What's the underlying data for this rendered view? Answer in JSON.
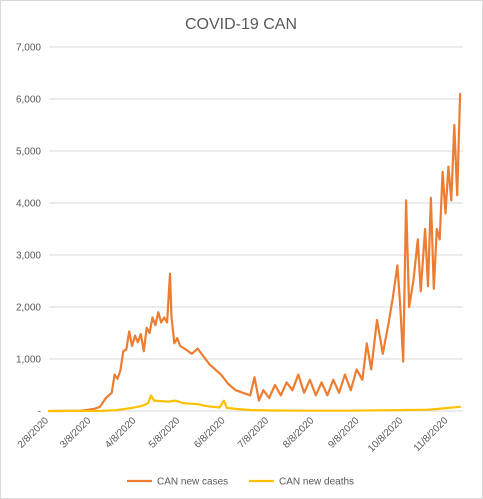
{
  "chart_data": {
    "type": "line",
    "title": "COVID-19 CAN",
    "xlabel": "",
    "ylabel": "",
    "x_range": [
      "2020-02-08",
      "2020-11-18"
    ],
    "ylim": [
      0,
      7000
    ],
    "y_ticks": [
      "-",
      "1,000",
      "2,000",
      "3,000",
      "4,000",
      "5,000",
      "6,000",
      "7,000"
    ],
    "y_tick_values": [
      0,
      1000,
      2000,
      3000,
      4000,
      5000,
      6000,
      7000
    ],
    "x_ticks": [
      "2/8/2020",
      "3/8/2020",
      "4/8/2020",
      "5/8/2020",
      "6/8/2020",
      "7/8/2020",
      "8/8/2020",
      "9/8/2020",
      "10/8/2020",
      "11/8/2020"
    ],
    "x_tick_dates": [
      "2020-02-08",
      "2020-03-08",
      "2020-04-08",
      "2020-05-08",
      "2020-06-08",
      "2020-07-08",
      "2020-08-08",
      "2020-09-08",
      "2020-10-08",
      "2020-11-08"
    ],
    "grid": "horizontal",
    "legend_position": "bottom",
    "series": [
      {
        "name": "CAN new cases",
        "color": "#ed7d31",
        "points": [
          [
            "2020-02-08",
            0
          ],
          [
            "2020-02-20",
            2
          ],
          [
            "2020-03-01",
            5
          ],
          [
            "2020-03-05",
            20
          ],
          [
            "2020-03-10",
            40
          ],
          [
            "2020-03-14",
            80
          ],
          [
            "2020-03-18",
            250
          ],
          [
            "2020-03-22",
            350
          ],
          [
            "2020-03-24",
            700
          ],
          [
            "2020-03-26",
            620
          ],
          [
            "2020-03-28",
            780
          ],
          [
            "2020-03-30",
            1150
          ],
          [
            "2020-04-01",
            1180
          ],
          [
            "2020-04-03",
            1530
          ],
          [
            "2020-04-05",
            1250
          ],
          [
            "2020-04-07",
            1450
          ],
          [
            "2020-04-09",
            1320
          ],
          [
            "2020-04-11",
            1480
          ],
          [
            "2020-04-13",
            1150
          ],
          [
            "2020-04-15",
            1600
          ],
          [
            "2020-04-17",
            1500
          ],
          [
            "2020-04-19",
            1800
          ],
          [
            "2020-04-21",
            1650
          ],
          [
            "2020-04-23",
            1900
          ],
          [
            "2020-04-25",
            1700
          ],
          [
            "2020-04-27",
            1800
          ],
          [
            "2020-04-29",
            1700
          ],
          [
            "2020-05-01",
            2640
          ],
          [
            "2020-05-02",
            1800
          ],
          [
            "2020-05-04",
            1300
          ],
          [
            "2020-05-06",
            1400
          ],
          [
            "2020-05-08",
            1250
          ],
          [
            "2020-05-12",
            1180
          ],
          [
            "2020-05-16",
            1100
          ],
          [
            "2020-05-20",
            1200
          ],
          [
            "2020-05-24",
            1050
          ],
          [
            "2020-05-28",
            900
          ],
          [
            "2020-06-01",
            800
          ],
          [
            "2020-06-05",
            700
          ],
          [
            "2020-06-10",
            520
          ],
          [
            "2020-06-15",
            400
          ],
          [
            "2020-06-20",
            350
          ],
          [
            "2020-06-25",
            300
          ],
          [
            "2020-06-28",
            650
          ],
          [
            "2020-07-01",
            200
          ],
          [
            "2020-07-04",
            400
          ],
          [
            "2020-07-08",
            250
          ],
          [
            "2020-07-12",
            500
          ],
          [
            "2020-07-16",
            300
          ],
          [
            "2020-07-20",
            550
          ],
          [
            "2020-07-24",
            400
          ],
          [
            "2020-07-28",
            700
          ],
          [
            "2020-08-01",
            350
          ],
          [
            "2020-08-05",
            600
          ],
          [
            "2020-08-09",
            300
          ],
          [
            "2020-08-13",
            550
          ],
          [
            "2020-08-17",
            300
          ],
          [
            "2020-08-21",
            600
          ],
          [
            "2020-08-25",
            350
          ],
          [
            "2020-08-29",
            700
          ],
          [
            "2020-09-02",
            400
          ],
          [
            "2020-09-06",
            800
          ],
          [
            "2020-09-10",
            600
          ],
          [
            "2020-09-13",
            1300
          ],
          [
            "2020-09-16",
            800
          ],
          [
            "2020-09-20",
            1750
          ],
          [
            "2020-09-24",
            1100
          ],
          [
            "2020-09-28",
            1700
          ],
          [
            "2020-10-01",
            2200
          ],
          [
            "2020-10-04",
            2800
          ],
          [
            "2020-10-06",
            2000
          ],
          [
            "2020-10-08",
            950
          ],
          [
            "2020-10-10",
            4050
          ],
          [
            "2020-10-12",
            2000
          ],
          [
            "2020-10-15",
            2500
          ],
          [
            "2020-10-18",
            3300
          ],
          [
            "2020-10-20",
            2300
          ],
          [
            "2020-10-23",
            3500
          ],
          [
            "2020-10-25",
            2400
          ],
          [
            "2020-10-27",
            4100
          ],
          [
            "2020-10-29",
            2350
          ],
          [
            "2020-10-31",
            3500
          ],
          [
            "2020-11-02",
            3300
          ],
          [
            "2020-11-04",
            4600
          ],
          [
            "2020-11-06",
            3800
          ],
          [
            "2020-11-08",
            4700
          ],
          [
            "2020-11-10",
            4050
          ],
          [
            "2020-11-12",
            5500
          ],
          [
            "2020-11-14",
            4150
          ],
          [
            "2020-11-16",
            6100
          ]
        ]
      },
      {
        "name": "CAN new deaths",
        "color": "#ffc000",
        "points": [
          [
            "2020-02-08",
            0
          ],
          [
            "2020-03-15",
            2
          ],
          [
            "2020-03-25",
            15
          ],
          [
            "2020-04-05",
            60
          ],
          [
            "2020-04-12",
            100
          ],
          [
            "2020-04-16",
            150
          ],
          [
            "2020-04-18",
            300
          ],
          [
            "2020-04-20",
            200
          ],
          [
            "2020-04-25",
            190
          ],
          [
            "2020-04-30",
            180
          ],
          [
            "2020-05-05",
            200
          ],
          [
            "2020-05-10",
            150
          ],
          [
            "2020-05-15",
            140
          ],
          [
            "2020-05-20",
            130
          ],
          [
            "2020-05-25",
            100
          ],
          [
            "2020-05-30",
            80
          ],
          [
            "2020-06-04",
            70
          ],
          [
            "2020-06-07",
            200
          ],
          [
            "2020-06-09",
            60
          ],
          [
            "2020-06-15",
            40
          ],
          [
            "2020-06-25",
            20
          ],
          [
            "2020-07-10",
            10
          ],
          [
            "2020-08-01",
            5
          ],
          [
            "2020-09-01",
            5
          ],
          [
            "2020-10-01",
            15
          ],
          [
            "2020-10-10",
            20
          ],
          [
            "2020-10-25",
            25
          ],
          [
            "2020-11-01",
            40
          ],
          [
            "2020-11-08",
            60
          ],
          [
            "2020-11-16",
            80
          ]
        ]
      }
    ]
  }
}
